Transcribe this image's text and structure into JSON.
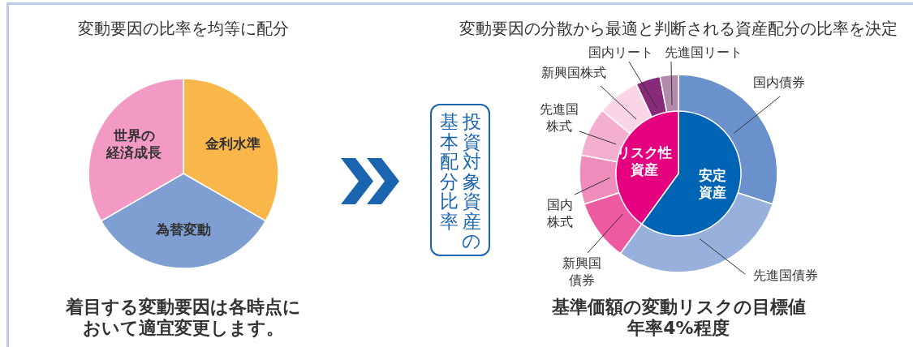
{
  "chart_data": [
    {
      "type": "pie",
      "title": "変動要因の比率を均等に配分",
      "categories": [
        "金利水準",
        "為替変動",
        "世界の経済成長"
      ],
      "values": [
        33.33,
        33.33,
        33.33
      ],
      "colors": [
        "#f9b74a",
        "#7f9fd3",
        "#f29ac3"
      ],
      "annotations": [
        "着目する変動要因は各時点において適宜変更します。"
      ]
    },
    {
      "type": "donut",
      "title": "変動要因の分散から最適と判断される資産配分の比率を決定",
      "categories": [
        "国内債券",
        "先進国債券",
        "新興国債券",
        "国内株式",
        "先進国株式",
        "新興国株式",
        "国内リート",
        "先進国リート"
      ],
      "values": [
        30,
        30,
        10,
        8,
        8,
        7,
        4,
        3
      ],
      "colors": [
        "#6b91cc",
        "#97b0dc",
        "#ee5aa1",
        "#f08cbb",
        "#f4afcf",
        "#f9d5e5",
        "#882a7a",
        "#b48aab"
      ],
      "annotations": [
        "投資対象資産の基本配分比率",
        "基準価額の変動リスクの目標値年率4%程度"
      ]
    },
    {
      "type": "pie",
      "categories": [
        "安定資産",
        "リスク性資産"
      ],
      "values": [
        60,
        40
      ],
      "colors": [
        "#0064b4",
        "#e5007f"
      ]
    }
  ]
}
